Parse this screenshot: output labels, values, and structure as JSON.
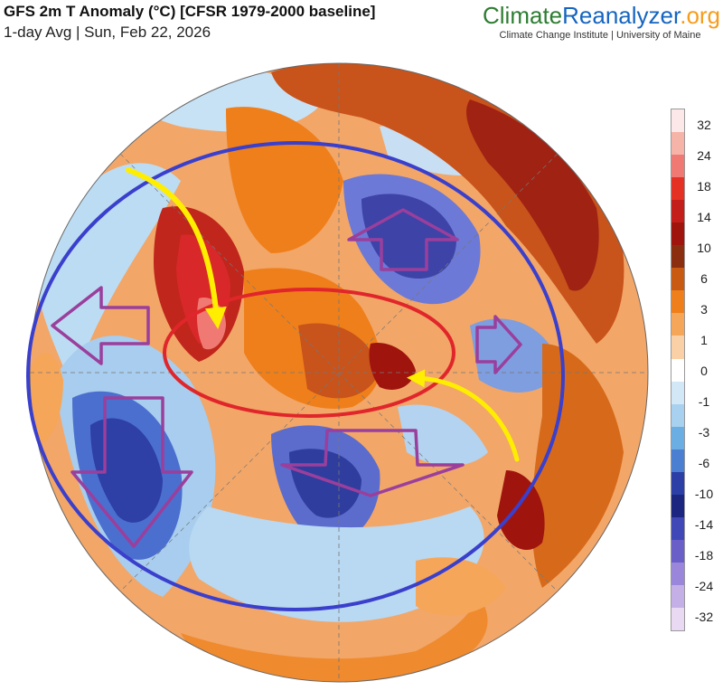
{
  "header": {
    "title": "GFS 2m T Anomaly (°C) [CFSR 1979-2000 baseline]",
    "subtitle": "1-day Avg | Sun, Feb 22, 2026"
  },
  "brand": {
    "part1": "Climate",
    "part2": "Reanalyzer",
    "part3": ".org",
    "tagline": "Climate Change Institute | University of Maine"
  },
  "legend": {
    "labels": [
      "32",
      "24",
      "18",
      "14",
      "10",
      "6",
      "3",
      "1",
      "0",
      "-1",
      "-3",
      "-6",
      "-10",
      "-14",
      "-18",
      "-24",
      "-32"
    ],
    "colors": [
      "#fce8e8",
      "#f6b3a8",
      "#f07a73",
      "#e53124",
      "#c41e1a",
      "#a0140e",
      "#8b2e10",
      "#c85a12",
      "#ef7f1a",
      "#f6a659",
      "#fad0a6",
      "#ffffff",
      "#d3e8f6",
      "#a8d1ef",
      "#6aaee3",
      "#4a7fd1",
      "#2b3fa6",
      "#1a2680",
      "#4047b6",
      "#6a5fc8",
      "#9a86da",
      "#c4b0e6",
      "#ead9f3"
    ]
  },
  "annotations": {
    "outer_ellipse_color": "#3a3fcc",
    "inner_ellipse_color": "#e0262a",
    "arrow_color": "#9a3f9c",
    "flow_arrow_color": "#ffee00"
  }
}
